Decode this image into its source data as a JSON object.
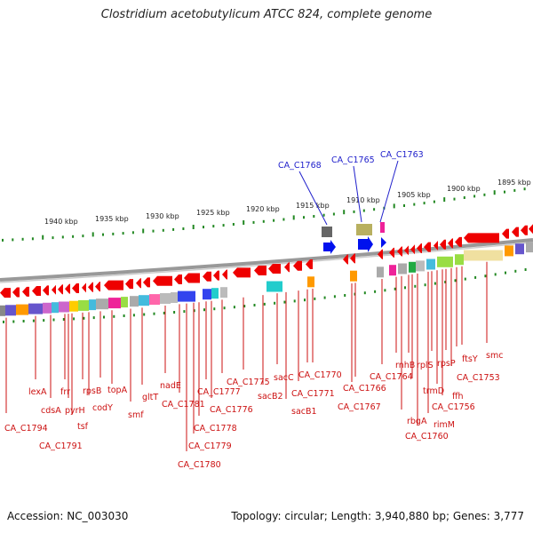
{
  "title": "Clostridium acetobutylicum ATCC 824, complete genome",
  "accession": "Accession: NC_003030",
  "summary": "Topology: circular; Length: 3,940,880 bp; Genes: 3,777",
  "colors": {
    "gene_arrow": "#ee0000",
    "gene_label": "#cc1111",
    "highlight_label": "#2222cc",
    "backbone": "#999999",
    "tick": "#228822"
  },
  "scale_ticks": [
    "1940 kbp",
    "1935 kbp",
    "1930 kbp",
    "1925 kbp",
    "1920 kbp",
    "1915 kbp",
    "1910 kbp",
    "1905 kbp",
    "1900 kbp",
    "1895 kbp"
  ],
  "highlighted_genes": [
    "CA_C1768",
    "CA_C1765",
    "CA_C1763"
  ],
  "gene_labels": [
    "lexA",
    "cdsA",
    "frr",
    "pyrH",
    "tsf",
    "rpsB",
    "codY",
    "topA",
    "smf",
    "gltT",
    "nadE",
    "CA_C1781",
    "CA_C1780",
    "CA_C1779",
    "CA_C1778",
    "CA_C1777",
    "CA_C1776",
    "CA_C1775",
    "sacB2",
    "sacC",
    "sacB1",
    "CA_C1771",
    "CA_C1770",
    "CA_C1767",
    "CA_C1766",
    "CA_C1764",
    "rnhB",
    "rbgA",
    "rplS",
    "trmD",
    "CA_C1760",
    "rimM",
    "rpsP",
    "ffh",
    "CA_C1756",
    "CA_C1753",
    "ftsY",
    "smc",
    "CA_C1794",
    "CA_C1791"
  ]
}
